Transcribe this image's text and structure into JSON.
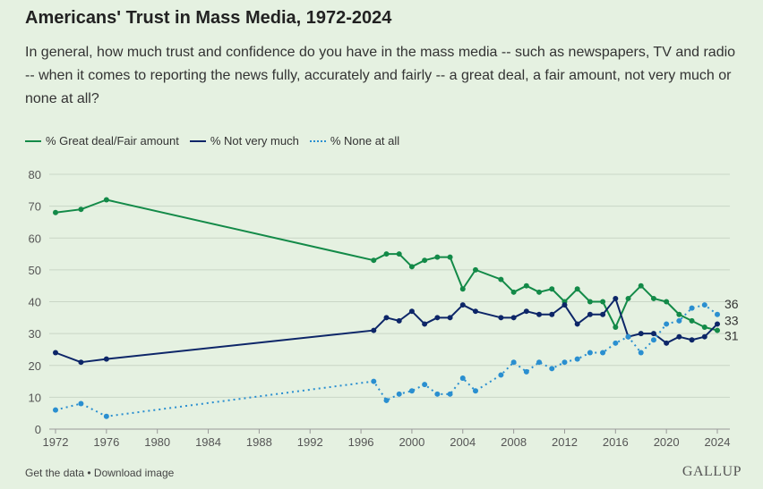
{
  "title": "Americans' Trust in Mass Media, 1972-2024",
  "subtitle": "In general, how much trust and confidence do you have in the mass media -- such as newspapers, TV and radio -- when it comes to reporting the news fully, accurately and fairly -- a great deal, a fair amount, not very much or none at all?",
  "footer": {
    "links": "Get the data • Download image",
    "logo": "GALLUP"
  },
  "chart_data": {
    "type": "line",
    "title": "Americans' Trust in Mass Media, 1972-2024",
    "legend_position": "top-left",
    "grid": true,
    "ylim": [
      0,
      80
    ],
    "yticks": [
      0,
      10,
      20,
      30,
      40,
      50,
      60,
      70,
      80
    ],
    "xlim": [
      1972,
      2024
    ],
    "xticks": [
      1972,
      1976,
      1980,
      1984,
      1988,
      1992,
      1996,
      2000,
      2004,
      2008,
      2012,
      2016,
      2020,
      2024
    ],
    "x": [
      1972,
      1974,
      1976,
      1997,
      1998,
      1999,
      2000,
      2001,
      2002,
      2003,
      2004,
      2005,
      2007,
      2008,
      2009,
      2010,
      2011,
      2012,
      2013,
      2014,
      2015,
      2016,
      2017,
      2018,
      2019,
      2020,
      2021,
      2022,
      2023,
      2024
    ],
    "series": [
      {
        "name": "% Great deal/Fair amount",
        "color": "#138a48",
        "style": "solid",
        "end_label": "31",
        "values": [
          68,
          69,
          72,
          53,
          55,
          55,
          51,
          53,
          54,
          54,
          44,
          50,
          47,
          43,
          45,
          43,
          44,
          40,
          44,
          40,
          40,
          32,
          41,
          45,
          41,
          40,
          36,
          34,
          32,
          31
        ]
      },
      {
        "name": "% Not very much",
        "color": "#0d2668",
        "style": "solid",
        "end_label": "33",
        "values": [
          24,
          21,
          22,
          31,
          35,
          34,
          37,
          33,
          35,
          35,
          39,
          37,
          35,
          35,
          37,
          36,
          36,
          39,
          33,
          36,
          36,
          41,
          29,
          30,
          30,
          27,
          29,
          28,
          29,
          33
        ]
      },
      {
        "name": "% None at all",
        "color": "#2a8fd0",
        "style": "dotted",
        "end_label": "36",
        "values": [
          6,
          8,
          4,
          15,
          9,
          11,
          12,
          14,
          11,
          11,
          16,
          12,
          17,
          21,
          18,
          21,
          19,
          21,
          22,
          24,
          24,
          27,
          29,
          24,
          28,
          33,
          34,
          38,
          39,
          36
        ]
      }
    ]
  }
}
